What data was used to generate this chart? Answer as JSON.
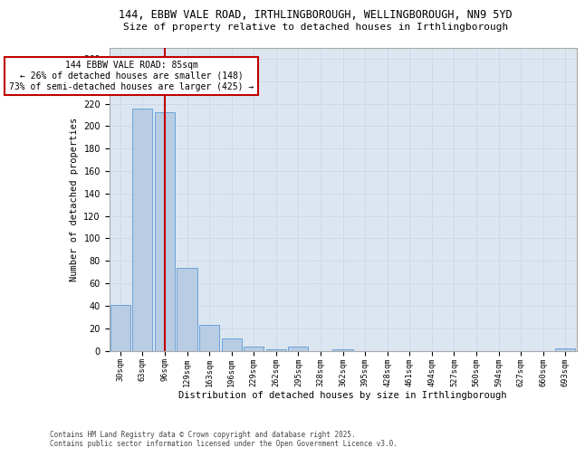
{
  "title_line1": "144, EBBW VALE ROAD, IRTHLINGBOROUGH, WELLINGBOROUGH, NN9 5YD",
  "title_line2": "Size of property relative to detached houses in Irthlingborough",
  "xlabel": "Distribution of detached houses by size in Irthlingborough",
  "ylabel": "Number of detached properties",
  "categories": [
    "30sqm",
    "63sqm",
    "96sqm",
    "129sqm",
    "163sqm",
    "196sqm",
    "229sqm",
    "262sqm",
    "295sqm",
    "328sqm",
    "362sqm",
    "395sqm",
    "428sqm",
    "461sqm",
    "494sqm",
    "527sqm",
    "560sqm",
    "594sqm",
    "627sqm",
    "660sqm",
    "693sqm"
  ],
  "values": [
    41,
    216,
    212,
    74,
    23,
    11,
    4,
    1,
    4,
    0,
    1,
    0,
    0,
    0,
    0,
    0,
    0,
    0,
    0,
    0,
    2
  ],
  "bar_color": "#b8cce4",
  "bar_edge_color": "#5b9bd5",
  "vline_color": "#c00000",
  "vline_x": 2.0,
  "annotation_text": "144 EBBW VALE ROAD: 85sqm\n← 26% of detached houses are smaller (148)\n73% of semi-detached houses are larger (425) →",
  "annotation_box_color": "#c00000",
  "annotation_box_facecolor": "white",
  "footnote": "Contains HM Land Registry data © Crown copyright and database right 2025.\nContains public sector information licensed under the Open Government Licence v3.0.",
  "ylim": [
    0,
    270
  ],
  "yticks": [
    0,
    20,
    40,
    60,
    80,
    100,
    120,
    140,
    160,
    180,
    200,
    220,
    240,
    260
  ],
  "grid_color": "#d0d8e8",
  "background_color": "#dce6f1",
  "fig_bg": "#ffffff"
}
